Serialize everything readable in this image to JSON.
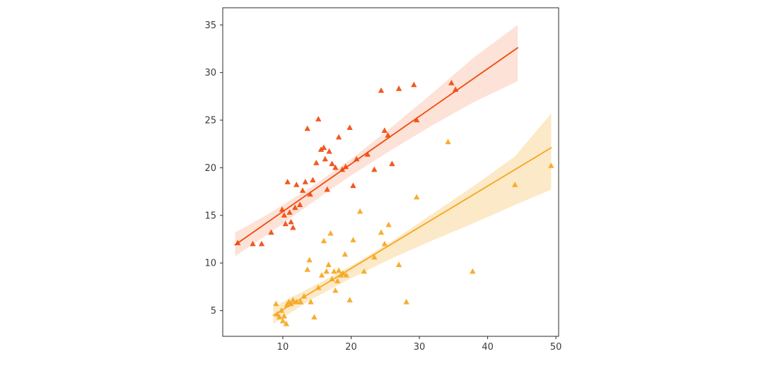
{
  "figure": {
    "background": "#ffffff",
    "plot_background": "#ffffff",
    "spine_color": "#2b2b2b",
    "tick_color": "#2b2b2b",
    "tick_label_color": "#3a3a3a"
  },
  "chart_data": {
    "type": "scatter",
    "title": "",
    "xlabel": "",
    "ylabel": "",
    "xlim": [
      1.2,
      50.4
    ],
    "ylim": [
      2.3,
      36.8
    ],
    "xticks": [
      10,
      20,
      30,
      40,
      50
    ],
    "yticks": [
      5,
      10,
      15,
      20,
      25,
      30,
      35
    ],
    "grid": false,
    "legend": null,
    "marker": "triangle-up",
    "series": [
      {
        "name": "upper-orange-red-series",
        "color": "#f04a0c",
        "band_opacity": 0.16,
        "regression": {
          "x1": 3.0,
          "y1": 11.9,
          "x2": 44.4,
          "y2": 32.6
        },
        "ci_band": [
          [
            3.0,
            10.7,
            13.2
          ],
          [
            8.0,
            13.1,
            15.2
          ],
          [
            14.0,
            16.2,
            17.9
          ],
          [
            20.0,
            19.2,
            20.9
          ],
          [
            26.0,
            21.9,
            24.3
          ],
          [
            32.0,
            24.5,
            27.9
          ],
          [
            38.0,
            26.9,
            31.6
          ],
          [
            44.4,
            29.1,
            35.0
          ]
        ],
        "points": [
          [
            3.4,
            12.1
          ],
          [
            5.6,
            12.0
          ],
          [
            6.9,
            12.0
          ],
          [
            8.3,
            13.2
          ],
          [
            9.9,
            15.6
          ],
          [
            10.2,
            15.0
          ],
          [
            10.4,
            14.1
          ],
          [
            10.7,
            18.5
          ],
          [
            11.0,
            15.3
          ],
          [
            11.2,
            14.3
          ],
          [
            11.5,
            13.7
          ],
          [
            11.8,
            15.8
          ],
          [
            12.0,
            18.2
          ],
          [
            12.5,
            16.1
          ],
          [
            12.9,
            17.6
          ],
          [
            13.3,
            18.5
          ],
          [
            13.6,
            24.1
          ],
          [
            14.0,
            17.2
          ],
          [
            14.4,
            18.7
          ],
          [
            14.9,
            20.5
          ],
          [
            15.2,
            25.1
          ],
          [
            15.6,
            21.9
          ],
          [
            16.0,
            22.1
          ],
          [
            16.2,
            20.9
          ],
          [
            16.5,
            17.7
          ],
          [
            16.8,
            21.7
          ],
          [
            17.2,
            20.4
          ],
          [
            17.7,
            20.0
          ],
          [
            18.2,
            23.2
          ],
          [
            18.7,
            19.8
          ],
          [
            19.2,
            20.1
          ],
          [
            19.8,
            24.2
          ],
          [
            20.3,
            18.1
          ],
          [
            20.8,
            20.9
          ],
          [
            22.4,
            21.4
          ],
          [
            23.4,
            19.8
          ],
          [
            24.4,
            28.1
          ],
          [
            24.9,
            23.9
          ],
          [
            25.4,
            23.4
          ],
          [
            26.0,
            20.4
          ],
          [
            27.0,
            28.3
          ],
          [
            29.2,
            28.7
          ],
          [
            29.6,
            25.0
          ],
          [
            34.7,
            28.9
          ],
          [
            35.3,
            28.2
          ]
        ]
      },
      {
        "name": "lower-amber-series",
        "color": "#f5a71f",
        "band_opacity": 0.25,
        "regression": {
          "x1": 8.6,
          "y1": 4.5,
          "x2": 49.3,
          "y2": 22.1
        },
        "ci_band": [
          [
            8.6,
            3.6,
            5.4
          ],
          [
            14.0,
            6.1,
            7.4
          ],
          [
            20.0,
            8.4,
            9.7
          ],
          [
            26.0,
            10.5,
            12.3
          ],
          [
            32.0,
            12.4,
            15.2
          ],
          [
            38.0,
            14.2,
            18.1
          ],
          [
            44.0,
            16.1,
            21.2
          ],
          [
            49.3,
            17.7,
            25.7
          ]
        ],
        "points": [
          [
            9.0,
            5.7
          ],
          [
            9.2,
            4.6
          ],
          [
            9.5,
            4.3
          ],
          [
            9.8,
            5.0
          ],
          [
            10.0,
            3.9
          ],
          [
            10.2,
            4.4
          ],
          [
            10.5,
            3.6
          ],
          [
            10.6,
            5.6
          ],
          [
            10.9,
            5.9
          ],
          [
            11.2,
            5.7
          ],
          [
            11.5,
            6.1
          ],
          [
            12.0,
            5.9
          ],
          [
            12.6,
            5.9
          ],
          [
            13.1,
            6.5
          ],
          [
            13.6,
            9.3
          ],
          [
            13.9,
            10.3
          ],
          [
            14.1,
            5.9
          ],
          [
            14.6,
            4.3
          ],
          [
            15.2,
            7.4
          ],
          [
            15.7,
            8.7
          ],
          [
            16.0,
            12.3
          ],
          [
            16.4,
            9.1
          ],
          [
            16.7,
            9.8
          ],
          [
            17.0,
            13.1
          ],
          [
            17.2,
            8.3
          ],
          [
            17.5,
            9.1
          ],
          [
            17.7,
            7.1
          ],
          [
            18.0,
            8.1
          ],
          [
            18.2,
            9.2
          ],
          [
            18.5,
            8.7
          ],
          [
            18.8,
            8.9
          ],
          [
            19.1,
            10.9
          ],
          [
            19.3,
            8.7
          ],
          [
            19.8,
            6.1
          ],
          [
            20.3,
            12.4
          ],
          [
            21.3,
            15.4
          ],
          [
            21.9,
            9.1
          ],
          [
            23.4,
            10.6
          ],
          [
            24.4,
            13.2
          ],
          [
            24.9,
            12.0
          ],
          [
            25.5,
            14.0
          ],
          [
            27.0,
            9.8
          ],
          [
            28.1,
            5.9
          ],
          [
            29.6,
            16.9
          ],
          [
            34.2,
            22.7
          ],
          [
            37.8,
            9.1
          ],
          [
            44.0,
            18.2
          ],
          [
            49.3,
            20.2
          ]
        ]
      }
    ]
  }
}
